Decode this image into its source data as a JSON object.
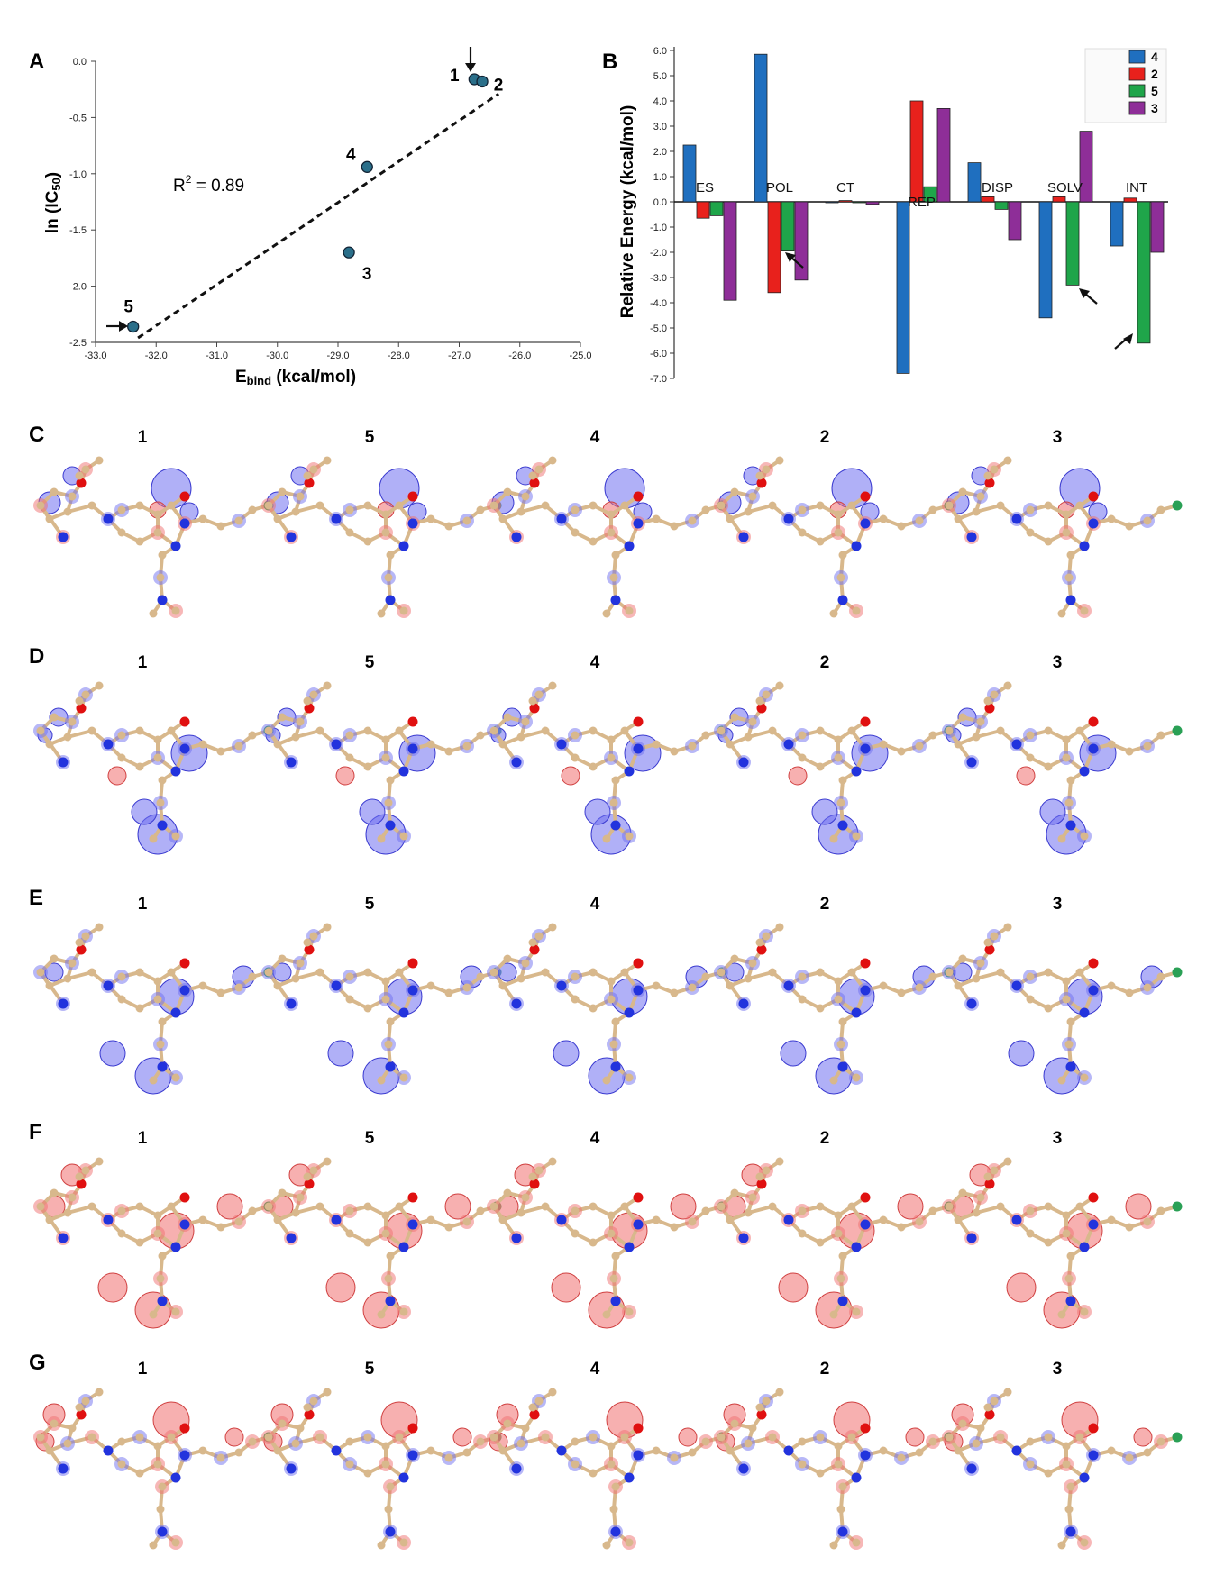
{
  "panel_letters": {
    "a": "A",
    "b": "B",
    "c": "C",
    "d": "D",
    "e": "E",
    "f": "F",
    "g": "G"
  },
  "chart_data": [
    {
      "type": "scatter",
      "panel": "A",
      "xlabel_main": "E",
      "xlabel_sub": "bind",
      "xlabel_rest": " (kcal/mol)",
      "ylabel_main": "ln (IC",
      "ylabel_sub": "50",
      "ylabel_end": ")",
      "xlim": [
        -33.0,
        -25.0
      ],
      "ylim": [
        -2.5,
        0.0
      ],
      "xticks": [
        "-33.0",
        "-32.0",
        "-31.0",
        "-30.0",
        "-29.0",
        "-28.0",
        "-27.0",
        "-26.0",
        "-25.0"
      ],
      "yticks": [
        "0.0",
        "-0.5",
        "-1.0",
        "-1.5",
        "-2.0",
        "-2.5"
      ],
      "r2_label": "R",
      "r2_sup": "2",
      "r2_value": " = 0.89",
      "point_color": "#2a6f8a",
      "points": [
        {
          "label": "1",
          "x": -26.75,
          "y": -0.16
        },
        {
          "label": "2",
          "x": -26.62,
          "y": -0.18
        },
        {
          "label": "4",
          "x": -28.52,
          "y": -0.94
        },
        {
          "label": "3",
          "x": -28.82,
          "y": -1.7
        },
        {
          "label": "5",
          "x": -32.38,
          "y": -2.36
        }
      ],
      "fit_line": {
        "x": [
          -32.3,
          -26.35
        ],
        "y": [
          -2.46,
          -0.29
        ]
      }
    },
    {
      "type": "bar",
      "panel": "B",
      "ylabel": "Relative Energy (kcal/mol)",
      "ylim": [
        -7.0,
        6.0
      ],
      "yticks": [
        "6.0",
        "5.0",
        "4.0",
        "3.0",
        "2.0",
        "1.0",
        "0.0",
        "-1.0",
        "-2.0",
        "-3.0",
        "-4.0",
        "-5.0",
        "-6.0",
        "-7.0"
      ],
      "categories": [
        "ES",
        "POL",
        "CT",
        "REP",
        "DISP",
        "SOLV",
        "INT"
      ],
      "series": [
        {
          "name": "4",
          "color": "#1f6fbf",
          "values": [
            2.25,
            5.85,
            0.0,
            -6.8,
            1.55,
            -4.6,
            -1.75
          ]
        },
        {
          "name": "2",
          "color": "#e8211c",
          "values": [
            -0.65,
            -3.6,
            0.05,
            4.0,
            0.2,
            0.2,
            0.15
          ]
        },
        {
          "name": "5",
          "color": "#1fa54a",
          "values": [
            -0.55,
            -1.95,
            0.0,
            0.6,
            -0.3,
            -3.3,
            -5.6
          ]
        },
        {
          "name": "3",
          "color": "#8e2e98",
          "values": [
            -3.9,
            -3.1,
            -0.1,
            3.7,
            -1.5,
            2.8,
            -2.0
          ]
        }
      ],
      "legend_position": "top-right"
    }
  ],
  "molecule_panels": [
    {
      "letter": "C",
      "labels": [
        "1",
        "5",
        "4",
        "2",
        "3"
      ]
    },
    {
      "letter": "D",
      "labels": [
        "1",
        "5",
        "4",
        "2",
        "3"
      ]
    },
    {
      "letter": "E",
      "labels": [
        "1",
        "5",
        "4",
        "2",
        "3"
      ]
    },
    {
      "letter": "F",
      "labels": [
        "1",
        "5",
        "4",
        "2",
        "3"
      ]
    },
    {
      "letter": "G",
      "labels": [
        "1",
        "5",
        "4",
        "2",
        "3"
      ]
    }
  ],
  "colors": {
    "carbon": "#d8b88c",
    "nitrogen": "#2233dd",
    "oxygen": "#e01010",
    "chlorine": "#2aa055",
    "blue_sphere": "#6f6ff0",
    "red_sphere": "#f07070"
  }
}
